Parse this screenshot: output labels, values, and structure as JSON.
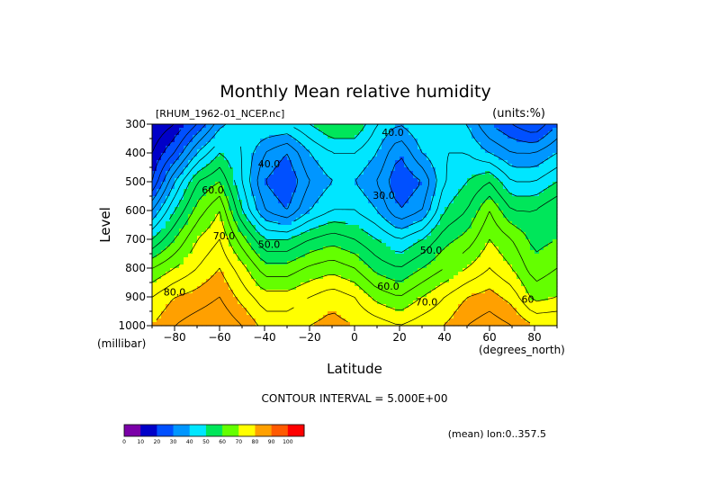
{
  "chart_data": {
    "type": "contour",
    "title": "Monthly Mean relative humidity",
    "dataset_label": "[RHUM_1962-01_NCEP.nc]",
    "units_label": "(units:%)",
    "xlabel": "Latitude",
    "x_units": "(degrees_north)",
    "ylabel": "Level",
    "y_units": "(millibar)",
    "xlim": [
      -90,
      90
    ],
    "ylim": [
      1000,
      300
    ],
    "x_ticks": [
      -80,
      -60,
      -40,
      -20,
      0,
      20,
      40,
      60,
      80
    ],
    "y_ticks": [
      300,
      400,
      500,
      600,
      700,
      800,
      900,
      1000
    ],
    "contour_interval_label": "CONTOUR INTERVAL = 5.000E+00",
    "average_label": "(mean) lon:0..357.5",
    "colorbar": {
      "levels": [
        0,
        10,
        20,
        30,
        40,
        50,
        60,
        70,
        80,
        90,
        100
      ],
      "colors": [
        "#7b00a8",
        "#0000c8",
        "#0050ff",
        "#0096ff",
        "#00e6ff",
        "#00e65a",
        "#64ff00",
        "#ffff00",
        "#ffa000",
        "#ff5a00",
        "#ff0000"
      ]
    },
    "contour_labels": [
      {
        "text": "40.0",
        "lat": 17,
        "lev": 340
      },
      {
        "text": "40.0",
        "lat": -38,
        "lev": 450
      },
      {
        "text": "30.0",
        "lat": 13,
        "lev": 560
      },
      {
        "text": "60.0",
        "lat": -63,
        "lev": 540
      },
      {
        "text": "70.0",
        "lat": -58,
        "lev": 700
      },
      {
        "text": "50.0",
        "lat": -38,
        "lev": 730
      },
      {
        "text": "50.0",
        "lat": 34,
        "lev": 750
      },
      {
        "text": "60.0",
        "lat": 15,
        "lev": 875
      },
      {
        "text": "70.0",
        "lat": 32,
        "lev": 930
      },
      {
        "text": "80.0",
        "lat": -80,
        "lev": 895
      },
      {
        "text": "60",
        "lat": 77,
        "lev": 920
      }
    ],
    "field_samples": {
      "lat": [
        -90,
        -80,
        -70,
        -60,
        -50,
        -40,
        -30,
        -20,
        -10,
        0,
        10,
        20,
        30,
        40,
        50,
        60,
        70,
        80,
        90
      ],
      "lev": [
        300,
        400,
        500,
        600,
        700,
        800,
        900,
        1000
      ],
      "rh": [
        [
          10,
          15,
          25,
          38,
          45,
          45,
          45,
          50,
          55,
          55,
          45,
          40,
          45,
          45,
          40,
          30,
          25,
          20,
          30
        ],
        [
          15,
          25,
          40,
          50,
          45,
          35,
          30,
          40,
          45,
          45,
          40,
          30,
          40,
          45,
          45,
          40,
          35,
          35,
          40
        ],
        [
          20,
          40,
          55,
          60,
          45,
          30,
          25,
          35,
          40,
          40,
          35,
          25,
          30,
          45,
          50,
          55,
          45,
          45,
          50
        ],
        [
          35,
          50,
          62,
          70,
          50,
          35,
          30,
          40,
          45,
          45,
          40,
          30,
          35,
          50,
          55,
          65,
          55,
          55,
          60
        ],
        [
          50,
          60,
          70,
          75,
          62,
          50,
          50,
          55,
          58,
          55,
          50,
          45,
          50,
          58,
          62,
          70,
          65,
          58,
          60
        ],
        [
          65,
          70,
          75,
          80,
          72,
          62,
          62,
          66,
          68,
          65,
          58,
          55,
          60,
          65,
          70,
          75,
          70,
          62,
          65
        ],
        [
          75,
          80,
          82,
          85,
          78,
          72,
          72,
          75,
          78,
          75,
          68,
          65,
          70,
          75,
          80,
          82,
          78,
          68,
          70
        ],
        [
          80,
          85,
          88,
          90,
          85,
          78,
          78,
          80,
          82,
          80,
          78,
          75,
          78,
          80,
          85,
          88,
          85,
          80,
          80
        ]
      ]
    }
  }
}
